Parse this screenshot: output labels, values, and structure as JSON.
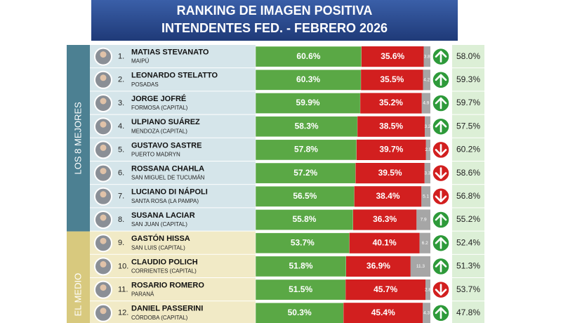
{
  "chart_data": {
    "type": "ranking-bars",
    "title": [
      "RANKING DE IMAGEN POSITIVA",
      "INTENDENTES FED. - FEBRERO 2026"
    ],
    "colors": {
      "positive": "#5aa845",
      "negative": "#d21f1f",
      "ns": "#a6a6a6",
      "up": "#2e9a3a",
      "down": "#d21f1f"
    },
    "xlim": [
      0,
      100
    ],
    "sections": [
      {
        "label": "LOS 8 MEJORES",
        "color": "#4c8092",
        "row_color": "#d5e5ea",
        "rows": [
          {
            "rank": "1.",
            "name": "MATIAS STEVANATO",
            "city": "MAIPÚ",
            "positive": 60.6,
            "positive_label": "60.6%",
            "negative": 35.6,
            "negative_label": "35.6%",
            "ns": 3.8,
            "trend": "up",
            "previous": 58.0,
            "previous_label": "58.0%"
          },
          {
            "rank": "2.",
            "name": "LEONARDO STELATTO",
            "city": "POSADAS",
            "positive": 60.3,
            "positive_label": "60.3%",
            "negative": 35.5,
            "negative_label": "35.5%",
            "ns": 4.2,
            "trend": "up",
            "previous": 59.3,
            "previous_label": "59.3%"
          },
          {
            "rank": "3.",
            "name": "JORGE JOFRÉ",
            "city": "FORMOSA (CAPITAL)",
            "positive": 59.9,
            "positive_label": "59.9%",
            "negative": 35.2,
            "negative_label": "35.2%",
            "ns": 4.9,
            "trend": "up",
            "previous": 59.7,
            "previous_label": "59.7%"
          },
          {
            "rank": "4.",
            "name": "ULPIANO SUÁREZ",
            "city": "MENDOZA (CAPITAL)",
            "positive": 58.3,
            "positive_label": "58.3%",
            "negative": 38.5,
            "negative_label": "38.5%",
            "ns": 3.2,
            "trend": "up",
            "previous": 57.5,
            "previous_label": "57.5%"
          },
          {
            "rank": "5.",
            "name": "GUSTAVO SASTRE",
            "city": "PUERTO MADRYN",
            "positive": 57.8,
            "positive_label": "57.8%",
            "negative": 39.7,
            "negative_label": "39.7%",
            "ns": 2.5,
            "trend": "down",
            "previous": 60.2,
            "previous_label": "60.2%"
          },
          {
            "rank": "6.",
            "name": "ROSSANA CHAHLA",
            "city": "SAN MIGUEL DE TUCUMÁN",
            "positive": 57.2,
            "positive_label": "57.2%",
            "negative": 39.5,
            "negative_label": "39.5%",
            "ns": 3.3,
            "trend": "down",
            "previous": 58.6,
            "previous_label": "58.6%"
          },
          {
            "rank": "7.",
            "name": "LUCIANO DI NÁPOLI",
            "city": "SANTA ROSA (LA PAMPA)",
            "positive": 56.5,
            "positive_label": "56.5%",
            "negative": 38.4,
            "negative_label": "38.4%",
            "ns": 5.1,
            "trend": "down",
            "previous": 56.8,
            "previous_label": "56.8%"
          },
          {
            "rank": "8.",
            "name": "SUSANA LACIAR",
            "city": "SAN JUAN (CAPITAL)",
            "positive": 55.8,
            "positive_label": "55.8%",
            "negative": 36.3,
            "negative_label": "36.3%",
            "ns": 7.9,
            "trend": "up",
            "previous": 55.2,
            "previous_label": "55.2%"
          }
        ]
      },
      {
        "label": "EL MEDIO",
        "color": "#d8c97e",
        "row_color": "#f1eac6",
        "rows": [
          {
            "rank": "9.",
            "name": "GASTÓN HISSA",
            "city": "SAN LUIS (CAPITAL)",
            "positive": 53.7,
            "positive_label": "53.7%",
            "negative": 40.1,
            "negative_label": "40.1%",
            "ns": 6.2,
            "trend": "up",
            "previous": 52.4,
            "previous_label": "52.4%"
          },
          {
            "rank": "10.",
            "name": "CLAUDIO POLICH",
            "city": "CORRIENTES (CAPITAL)",
            "positive": 51.8,
            "positive_label": "51.8%",
            "negative": 36.9,
            "negative_label": "36.9%",
            "ns": 11.3,
            "trend": "up",
            "previous": 51.3,
            "previous_label": "51.3%"
          },
          {
            "rank": "11.",
            "name": "ROSARIO ROMERO",
            "city": "PARANÁ",
            "positive": 51.5,
            "positive_label": "51.5%",
            "negative": 45.7,
            "negative_label": "45.7%",
            "ns": 2.8,
            "trend": "down",
            "previous": 53.7,
            "previous_label": "53.7%"
          },
          {
            "rank": "12.",
            "name": "DANIEL PASSERINI",
            "city": "CÓRDOBA (CAPITAL)",
            "positive": 50.3,
            "positive_label": "50.3%",
            "negative": 45.4,
            "negative_label": "45.4%",
            "ns": 4.3,
            "trend": "up",
            "previous": 47.8,
            "previous_label": "47.8%"
          }
        ]
      }
    ]
  }
}
